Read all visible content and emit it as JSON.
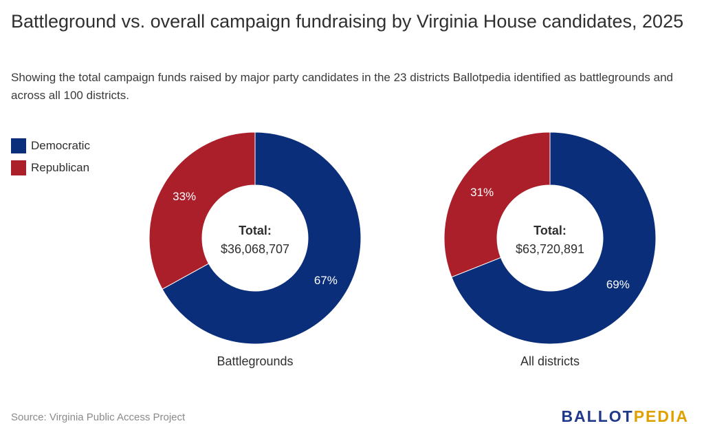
{
  "header": {
    "title": "Battleground vs. overall campaign fundraising by Virginia House candidates, 2025",
    "subtitle": "Showing the total campaign funds raised by major party candidates in the 23 districts Ballotpedia identified as battlegrounds and across all 100 districts."
  },
  "legend": [
    {
      "label": "Democratic",
      "color": "#0b2e7a"
    },
    {
      "label": "Republican",
      "color": "#ab1f2a"
    }
  ],
  "footer": {
    "source": "Source: Virginia Public Access Project",
    "logo_part1": "BALLOT",
    "logo_part2": "PEDIA",
    "logo_color1": "#1f3a8a",
    "logo_color2": "#e0a100"
  },
  "chart_data": [
    {
      "type": "pie",
      "style": "donut",
      "label": "Battlegrounds",
      "center_heading": "Total:",
      "center_value": "$36,068,707",
      "slices": [
        {
          "name": "Democratic",
          "value": 67,
          "label": "67%",
          "color": "#0b2e7a"
        },
        {
          "name": "Republican",
          "value": 33,
          "label": "33%",
          "color": "#ab1f2a"
        }
      ]
    },
    {
      "type": "pie",
      "style": "donut",
      "label": "All districts",
      "center_heading": "Total:",
      "center_value": "$63,720,891",
      "slices": [
        {
          "name": "Democratic",
          "value": 69,
          "label": "69%",
          "color": "#0b2e7a"
        },
        {
          "name": "Republican",
          "value": 31,
          "label": "31%",
          "color": "#ab1f2a"
        }
      ]
    }
  ]
}
